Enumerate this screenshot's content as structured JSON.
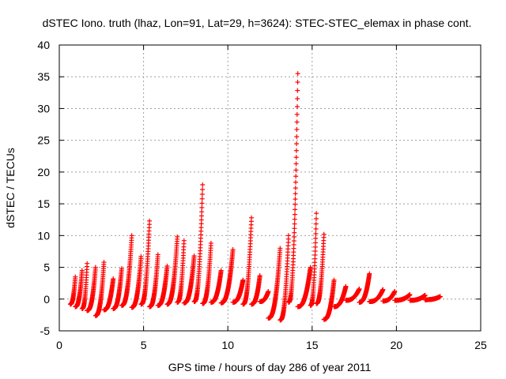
{
  "chart_data": {
    "type": "scatter",
    "title": "dSTEC Iono. truth (lhaz, Lon=91, Lat=29, h=3624): STEC-STEC_elemax in phase cont.",
    "xlabel": "GPS time / hours of day 286 of year 2011",
    "ylabel": "dSTEC  / TECUs",
    "xlim": [
      0,
      25
    ],
    "ylim": [
      -5,
      40
    ],
    "xticks": [
      0,
      5,
      10,
      15,
      20,
      25
    ],
    "yticks": [
      -5,
      0,
      5,
      10,
      15,
      20,
      25,
      30,
      35,
      40
    ],
    "grid": true,
    "marker": "+",
    "series_color": "#ff0000",
    "arcs": [
      {
        "start": 0.65,
        "end": 0.95,
        "y_start": -0.8,
        "y_peak": 3.5
      },
      {
        "start": 0.95,
        "end": 1.35,
        "y_start": -1.2,
        "y_peak": 4.5
      },
      {
        "start": 1.35,
        "end": 1.65,
        "y_start": -1.5,
        "y_peak": 5.6
      },
      {
        "start": 1.65,
        "end": 2.15,
        "y_start": -1.8,
        "y_peak": 5.0
      },
      {
        "start": 2.15,
        "end": 2.65,
        "y_start": -2.6,
        "y_peak": 5.8
      },
      {
        "start": 2.65,
        "end": 3.2,
        "y_start": -1.7,
        "y_peak": 3.2
      },
      {
        "start": 3.2,
        "end": 3.7,
        "y_start": -1.5,
        "y_peak": 4.8
      },
      {
        "start": 3.7,
        "end": 4.3,
        "y_start": -1.0,
        "y_peak": 10.0
      },
      {
        "start": 4.3,
        "end": 4.85,
        "y_start": -1.3,
        "y_peak": 6.7
      },
      {
        "start": 4.85,
        "end": 5.35,
        "y_start": -0.8,
        "y_peak": 12.3
      },
      {
        "start": 5.35,
        "end": 5.85,
        "y_start": -1.2,
        "y_peak": 7.0
      },
      {
        "start": 5.85,
        "end": 6.4,
        "y_start": -1.0,
        "y_peak": 5.2
      },
      {
        "start": 6.4,
        "end": 7.0,
        "y_start": -0.8,
        "y_peak": 9.8
      },
      {
        "start": 7.0,
        "end": 7.4,
        "y_start": -0.5,
        "y_peak": 9.2
      },
      {
        "start": 7.4,
        "end": 8.0,
        "y_start": -0.6,
        "y_peak": 6.8
      },
      {
        "start": 8.0,
        "end": 8.5,
        "y_start": -0.4,
        "y_peak": 18.0
      },
      {
        "start": 8.5,
        "end": 9.0,
        "y_start": -0.7,
        "y_peak": 8.8
      },
      {
        "start": 9.0,
        "end": 9.6,
        "y_start": -0.5,
        "y_peak": 4.5
      },
      {
        "start": 9.6,
        "end": 10.3,
        "y_start": -0.6,
        "y_peak": 7.8
      },
      {
        "start": 10.3,
        "end": 10.9,
        "y_start": -0.5,
        "y_peak": 3.0
      },
      {
        "start": 10.9,
        "end": 11.4,
        "y_start": -0.8,
        "y_peak": 12.8
      },
      {
        "start": 11.4,
        "end": 11.9,
        "y_start": -0.8,
        "y_peak": 3.7
      },
      {
        "start": 11.9,
        "end": 12.4,
        "y_start": -0.4,
        "y_peak": 1.2
      },
      {
        "start": 12.4,
        "end": 13.1,
        "y_start": -3.0,
        "y_peak": 8.0
      },
      {
        "start": 13.1,
        "end": 13.6,
        "y_start": -3.3,
        "y_peak": 10.0
      },
      {
        "start": 13.6,
        "end": 14.15,
        "y_start": -0.5,
        "y_peak": 35.5
      },
      {
        "start": 14.15,
        "end": 14.9,
        "y_start": -1.2,
        "y_peak": 5.0
      },
      {
        "start": 14.9,
        "end": 15.25,
        "y_start": -1.0,
        "y_peak": 13.5
      },
      {
        "start": 15.25,
        "end": 15.7,
        "y_start": -0.7,
        "y_peak": 10.2
      },
      {
        "start": 15.7,
        "end": 16.3,
        "y_start": -3.2,
        "y_peak": 3.0
      },
      {
        "start": 16.3,
        "end": 17.0,
        "y_start": -1.2,
        "y_peak": 2.0
      },
      {
        "start": 17.0,
        "end": 17.8,
        "y_start": -0.2,
        "y_peak": 1.6
      },
      {
        "start": 17.8,
        "end": 18.4,
        "y_start": -0.5,
        "y_peak": 4.0
      },
      {
        "start": 18.4,
        "end": 19.2,
        "y_start": -0.4,
        "y_peak": 1.5
      },
      {
        "start": 19.2,
        "end": 19.9,
        "y_start": -0.3,
        "y_peak": 1.2
      },
      {
        "start": 19.9,
        "end": 20.8,
        "y_start": -0.2,
        "y_peak": 0.7
      },
      {
        "start": 20.8,
        "end": 21.7,
        "y_start": -0.2,
        "y_peak": 0.6
      },
      {
        "start": 21.7,
        "end": 22.6,
        "y_start": -0.1,
        "y_peak": 0.4
      }
    ]
  }
}
